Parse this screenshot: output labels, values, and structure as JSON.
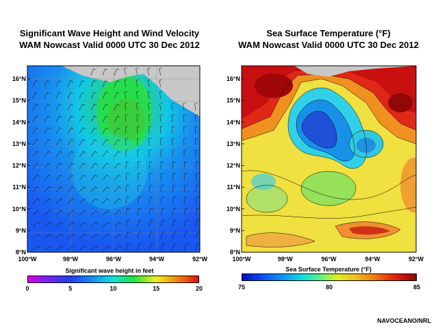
{
  "left_panel": {
    "title_line1": "Significant Wave Height and Wind Velocity",
    "title_line2": "WAM Nowcast Valid 0000 UTC 30 Dec 2012",
    "lat_labels": [
      "16°N",
      "15°N",
      "14°N",
      "13°N",
      "12°N",
      "11°N",
      "10°N",
      "9°N",
      "8°N"
    ],
    "lon_labels": [
      "100°W",
      "98°W",
      "96°W",
      "94°W",
      "92°W"
    ],
    "colorbar_label": "Significant wave height in feet",
    "colorbar_ticks": [
      "0",
      "5",
      "10",
      "15",
      "20"
    ]
  },
  "right_panel": {
    "title_line1": "Sea Surface Temperature (°F)",
    "title_line2": "WAM Nowcast Valid 0000 UTC 30 Dec 2012",
    "lat_labels": [
      "16°N",
      "15°N",
      "14°N",
      "13°N",
      "12°N",
      "11°N",
      "10°N",
      "9°N",
      "8°N"
    ],
    "lon_labels": [
      "100°W",
      "98°W",
      "96°W",
      "94°W",
      "92°W"
    ],
    "colorbar_label": "Sea Surface Temperature (°F)",
    "colorbar_ticks": [
      "75",
      "80",
      "85"
    ]
  },
  "credit": "NAVOCEANO/NRL",
  "colors": {
    "land": "#c8c8c8",
    "wave_low": "#1a5ff0",
    "wave_high": "#10e020",
    "sst_cold": "#1030d0",
    "sst_warm": "#d01010"
  }
}
